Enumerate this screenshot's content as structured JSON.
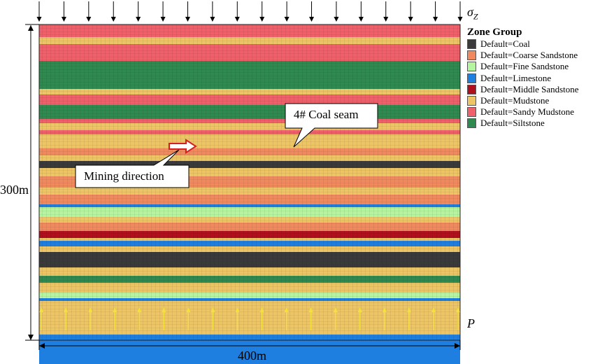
{
  "figure": {
    "width_label": "400m",
    "height_label": "300m",
    "top_load_symbol": "σ",
    "top_load_subscript": "Z",
    "bottom_load_symbol": "P",
    "annotations": {
      "coal_seam": "4# Coal seam",
      "mining_direction": "Mining direction"
    }
  },
  "legend": {
    "title": "Zone Group",
    "items": [
      {
        "label": "Default=Coal",
        "color": "#3a3a3a"
      },
      {
        "label": "Default=Coarse Sandstone",
        "color": "#f08a5e"
      },
      {
        "label": "Default=Fine Sandstone",
        "color": "#b6f5a0"
      },
      {
        "label": "Default=Limestone",
        "color": "#1e7fe0"
      },
      {
        "label": "Default=Middle Sandstone",
        "color": "#b0101e"
      },
      {
        "label": "Default=Mudstone",
        "color": "#eec565"
      },
      {
        "label": "Default=Sandy Mudstone",
        "color": "#f0606a"
      },
      {
        "label": "Default=Siltstone",
        "color": "#2e8a4e"
      }
    ]
  },
  "strata_sequence": [
    "Sandy Mudstone",
    "Mudstone",
    "Sandy Mudstone",
    "Siltstone",
    "Mudstone",
    "Sandy Mudstone",
    "Siltstone",
    "Sandy Mudstone",
    "Mudstone",
    "Sandy Mudstone",
    "Mudstone",
    "Coarse Sandstone",
    "Mudstone",
    "Coal",
    "Mudstone",
    "Coarse Sandstone",
    "Mudstone",
    "Coarse Sandstone",
    "Limestone",
    "Fine Sandstone",
    "Mudstone",
    "Coarse Sandstone",
    "Middle Sandstone",
    "Mudstone",
    "Limestone",
    "Mudstone",
    "Coal",
    "Mudstone",
    "Siltstone",
    "Mudstone",
    "Fine Sandstone",
    "Limestone",
    "Mudstone",
    "Limestone"
  ]
}
